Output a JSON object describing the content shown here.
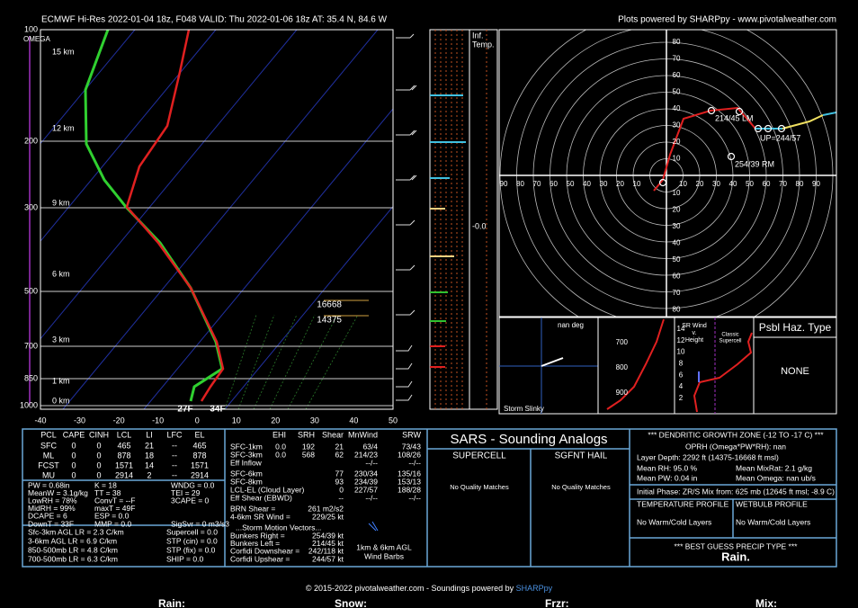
{
  "header": {
    "title": "ECMWF Hi-Res 2022-01-04 18z, F048  VALID: Thu 2022-01-06 18z  AT: 35.4 N, 84.6 W",
    "credit": "Plots powered by SHARPpy - www.pivotalweather.com"
  },
  "skewt": {
    "omega": "OMEGA",
    "pressures": [
      "100",
      "200",
      "300",
      "500",
      "700",
      "850",
      "1000"
    ],
    "temps": [
      "-40",
      "-30",
      "-20",
      "-10",
      "0",
      "10",
      "20",
      "30",
      "40",
      "50"
    ],
    "heights": [
      "15 km",
      "12 km",
      "9 km",
      "6 km",
      "3 km",
      "1 km",
      "0 km"
    ],
    "dgz_levels": [
      "16668",
      "14375"
    ],
    "surface_dewpoint": "27F",
    "surface_temp": "34F"
  },
  "inferred": {
    "label": [
      "Inf.",
      "Temp."
    ],
    "marker": "-0.0"
  },
  "hodograph": {
    "x_left": [
      "90",
      "80",
      "70",
      "60",
      "50",
      "40",
      "30",
      "20",
      "10"
    ],
    "x_right": [
      "10",
      "20",
      "30",
      "40",
      "50",
      "60",
      "70",
      "80",
      "90"
    ],
    "y_up": [
      "80",
      "70",
      "60",
      "50",
      "40",
      "30",
      "20",
      "10"
    ],
    "y_down": [
      "10",
      "20",
      "30",
      "40",
      "50",
      "60",
      "70",
      "80"
    ],
    "left_mover": "214/45 LM",
    "upshear": "UP=244/57",
    "right_mover": "254/39 RM"
  },
  "slinky": {
    "direction": "nan deg",
    "title": "Storm Slinky"
  },
  "omega_panel": {
    "pressures": [
      "700",
      "800",
      "900"
    ]
  },
  "sr_wind": {
    "title": [
      "SR Wind",
      "v.",
      "Height"
    ],
    "heights": [
      "14",
      "12",
      "10",
      "8",
      "6",
      "4",
      "2"
    ],
    "supercell": [
      "Classic",
      "Supercell"
    ]
  },
  "hazard": {
    "title": "Psbl Haz. Type",
    "value": "NONE"
  },
  "thermo": {
    "headers": [
      "PCL",
      "CAPE",
      "CINH",
      "LCL",
      "LI",
      "LFC",
      "EL"
    ],
    "rows": [
      [
        "SFC",
        "0",
        "0",
        "465",
        "21",
        "--",
        "465"
      ],
      [
        "ML",
        "0",
        "0",
        "878",
        "18",
        "--",
        "878"
      ],
      [
        "FCST",
        "0",
        "0",
        "1571",
        "14",
        "--",
        "1571"
      ],
      [
        "MU",
        "0",
        "0",
        "2914",
        "2",
        "--",
        "2914"
      ]
    ],
    "indices": [
      [
        "PW = 0.68in",
        "K = 18",
        "WNDG = 0.0"
      ],
      [
        "MeanW = 3.1g/kg",
        "TT = 38",
        "TEI = 29"
      ],
      [
        "LowRH = 78%",
        "ConvT = --F",
        "3CAPE = 0"
      ],
      [
        "MidRH = 99%",
        "maxT = 49F"
      ],
      [
        "DCAPE = 6",
        "ESP = 0.0"
      ],
      [
        "DownT = 33F",
        "MMP = 0.0",
        "SigSvr = 0 m3/s3"
      ]
    ],
    "lapse_rates": [
      "Sfc-3km AGL LR = 2.3 C/km",
      "3-6km AGL LR = 6.9 C/km",
      "850-500mb LR = 4.8 C/km",
      "700-500mb LR = 6.3 C/km"
    ],
    "severe": [
      "Supercell = 0.0",
      "STP (cin) = 0.0",
      "STP (fix) = 0.0",
      "SHIP = 0.0"
    ]
  },
  "kinematic": {
    "headers": [
      "EHI",
      "SRH",
      "Shear",
      "MnWind",
      "SRW"
    ],
    "rows": [
      {
        "label": "SFC-1km",
        "cells": [
          "0.0",
          "192",
          "21",
          "63/4",
          "73/43"
        ]
      },
      {
        "label": "SFC-3km",
        "cells": [
          "0.0",
          "568",
          "62",
          "214/23",
          "108/26"
        ]
      },
      {
        "label": "Eff Inflow",
        "cells": [
          "--/--",
          "--/--"
        ]
      },
      {
        "label": "SFC-6km",
        "cells": [
          "77",
          "230/34",
          "135/16"
        ]
      },
      {
        "label": "SFC-8km",
        "cells": [
          "93",
          "234/39",
          "153/13"
        ]
      },
      {
        "label": "LCL-EL (Cloud Layer)",
        "cells": [
          "0",
          "227/57",
          "188/28"
        ]
      },
      {
        "label": "Eff Shear (EBWD)",
        "cells": [
          "--",
          "--/--",
          "--/--"
        ]
      }
    ],
    "extra": [
      [
        "BRN Shear =",
        "261 m2/s2"
      ],
      [
        "4-6km SR Wind =",
        "229/25 kt"
      ]
    ],
    "motion_title": "...Storm Motion Vectors...",
    "motion": [
      [
        "Bunkers Right =",
        "254/39 kt"
      ],
      [
        "Bunkers Left =",
        "214/45 kt"
      ],
      [
        "Corfidi Downshear =",
        "242/118 kt"
      ],
      [
        "Corfidi Upshear =",
        "244/57 kt"
      ]
    ],
    "barb_legend": [
      "1km & 6km AGL",
      "Wind Barbs"
    ]
  },
  "sars": {
    "title": "SARS - Sounding Analogs",
    "supercell": "SUPERCELL",
    "hail": "SGFNT HAIL",
    "supercell_result": "No Quality Matches",
    "hail_result": "No Quality Matches"
  },
  "dgz": {
    "title": "*** DENDRITIC GROWTH ZONE (-12 TO -17 C) ***",
    "oprh": "OPRH (Omega*PW*RH): nan",
    "depth": "Layer Depth: 2292 ft (14375-16668 ft msl)",
    "mean_rh": "Mean RH: 95.0 %",
    "mean_mixrat": "Mean MixRat: 2.1 g/kg",
    "mean_pw": "Mean PW: 0.04 in",
    "mean_omega": "Mean Omega: nan ub/s",
    "phase": "Initial Phase: ZR/S Mix from: 625 mb (12645 ft msl; -8.9 C)",
    "temp_profile": "TEMPERATURE PROFILE",
    "wetbulb_profile": "WETBULB PROFILE",
    "temp_layers": "No Warm/Cold Layers",
    "wetbulb_layers": "No Warm/Cold Layers",
    "precip_title": "*** BEST GUESS PRECIP TYPE ***",
    "precip": "Rain."
  },
  "footer": {
    "text": "© 2015-2022 pivotalweather.com - Soundings powered by ",
    "link": "SHARPpy"
  },
  "legend_strip": [
    "Rain:",
    "Snow:",
    "Frzr:",
    "Mix:"
  ]
}
